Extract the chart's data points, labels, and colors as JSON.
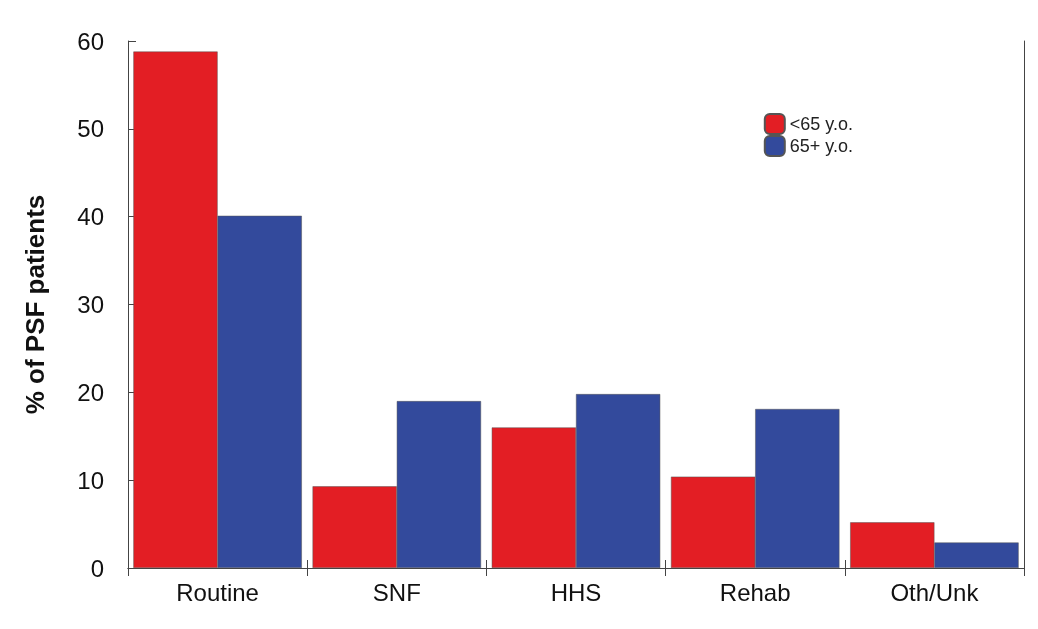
{
  "chart_data": {
    "type": "bar",
    "ylabel": "% of PSF patients",
    "categories": [
      "Routine",
      "SNF",
      "HHS",
      "Rehab",
      "Oth/Unk"
    ],
    "series": [
      {
        "name": "<65 y.o.",
        "color": "#e31e24",
        "values": [
          58.8,
          9.3,
          16.0,
          10.4,
          5.2
        ]
      },
      {
        "name": "65+ y.o.",
        "color": "#334a9c",
        "values": [
          40.1,
          19.0,
          19.8,
          18.1,
          2.9
        ]
      }
    ],
    "ylim": [
      0,
      60
    ],
    "yticks": [
      0,
      10,
      20,
      30,
      40,
      50,
      60
    ],
    "grid": false,
    "legend": "top right"
  }
}
